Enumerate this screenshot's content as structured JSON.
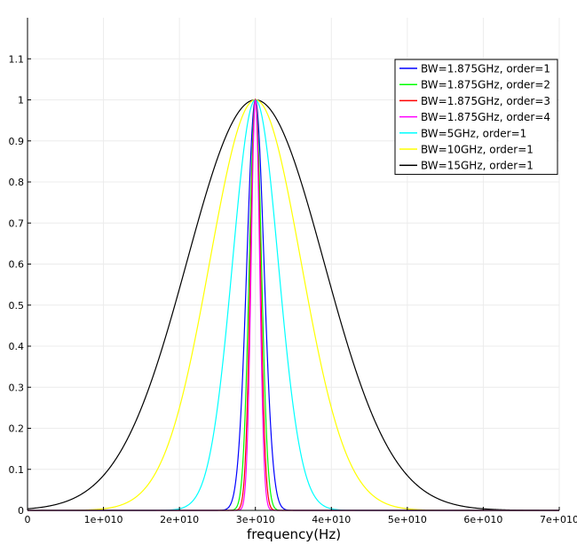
{
  "chart_data": {
    "type": "line",
    "title": "",
    "xlabel": "frequency(Hz)",
    "ylabel": "",
    "xlim": [
      0,
      70000000000
    ],
    "ylim": [
      0,
      1.2
    ],
    "x_ticks": [
      {
        "value": 0,
        "label": "0"
      },
      {
        "value": 10000000000,
        "label": "1e+010"
      },
      {
        "value": 20000000000,
        "label": "2e+010"
      },
      {
        "value": 30000000000,
        "label": "3e+010"
      },
      {
        "value": 40000000000,
        "label": "4e+010"
      },
      {
        "value": 50000000000,
        "label": "5e+010"
      },
      {
        "value": 60000000000,
        "label": "6e+010"
      },
      {
        "value": 70000000000,
        "label": "7e+010"
      }
    ],
    "y_ticks": [
      {
        "value": 0,
        "label": "0"
      },
      {
        "value": 0.1,
        "label": "0.1"
      },
      {
        "value": 0.2,
        "label": "0.2"
      },
      {
        "value": 0.3,
        "label": "0.3"
      },
      {
        "value": 0.4,
        "label": "0.4"
      },
      {
        "value": 0.5,
        "label": "0.5"
      },
      {
        "value": 0.6,
        "label": "0.6"
      },
      {
        "value": 0.7,
        "label": "0.7"
      },
      {
        "value": 0.8,
        "label": "0.8"
      },
      {
        "value": 0.9,
        "label": "0.9"
      },
      {
        "value": 1.0,
        "label": "1"
      },
      {
        "value": 1.1,
        "label": "1.1"
      }
    ],
    "grid": true,
    "legend_position": "top-right",
    "series": [
      {
        "name": "BW=1.875GHz, order=1",
        "color": "#0000ff",
        "center": 30000000000,
        "bandwidth": 1875000000,
        "order": 1
      },
      {
        "name": "BW=1.875GHz, order=2",
        "color": "#00ff00",
        "center": 30000000000,
        "bandwidth": 1875000000,
        "order": 2
      },
      {
        "name": "BW=1.875GHz, order=3",
        "color": "#ff0000",
        "center": 30000000000,
        "bandwidth": 1875000000,
        "order": 3
      },
      {
        "name": "BW=1.875GHz, order=4",
        "color": "#ff00ff",
        "center": 30000000000,
        "bandwidth": 1875000000,
        "order": 4
      },
      {
        "name": "BW=5GHz, order=1",
        "color": "#00ffff",
        "center": 30000000000,
        "bandwidth": 5000000000,
        "order": 1
      },
      {
        "name": "BW=10GHz, order=1",
        "color": "#ffff00",
        "center": 30000000000,
        "bandwidth": 10000000000,
        "order": 1
      },
      {
        "name": "BW=15GHz, order=1",
        "color": "#000000",
        "center": 30000000000,
        "bandwidth": 15000000000,
        "order": 1
      }
    ]
  }
}
